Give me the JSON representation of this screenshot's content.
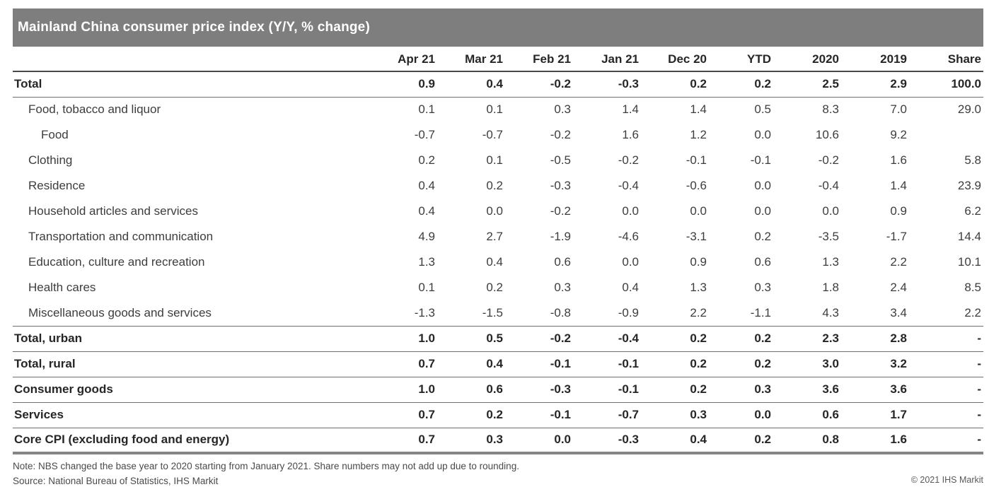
{
  "header": {
    "title": "Mainland China consumer price index (Y/Y, % change)"
  },
  "chart_data": {
    "type": "table",
    "title": "Mainland China consumer price index (Y/Y, % change)",
    "columns": [
      "Apr 21",
      "Mar 21",
      "Feb 21",
      "Jan 21",
      "Dec 20",
      "YTD",
      "2020",
      "2019",
      "Share"
    ],
    "rows": [
      {
        "label": "Total",
        "indent": 0,
        "emphasis": true,
        "divider_below": "thin",
        "values": [
          "0.9",
          "0.4",
          "-0.2",
          "-0.3",
          "0.2",
          "0.2",
          "2.5",
          "2.9",
          "100.0"
        ]
      },
      {
        "label": "Food, tobacco and liquor",
        "indent": 1,
        "emphasis": false,
        "divider_below": "none",
        "values": [
          "0.1",
          "0.1",
          "0.3",
          "1.4",
          "1.4",
          "0.5",
          "8.3",
          "7.0",
          "29.0"
        ]
      },
      {
        "label": "Food",
        "indent": 2,
        "emphasis": false,
        "divider_below": "none",
        "values": [
          "-0.7",
          "-0.7",
          "-0.2",
          "1.6",
          "1.2",
          "0.0",
          "10.6",
          "9.2",
          ""
        ]
      },
      {
        "label": "Clothing",
        "indent": 1,
        "emphasis": false,
        "divider_below": "none",
        "values": [
          "0.2",
          "0.1",
          "-0.5",
          "-0.2",
          "-0.1",
          "-0.1",
          "-0.2",
          "1.6",
          "5.8"
        ]
      },
      {
        "label": "Residence",
        "indent": 1,
        "emphasis": false,
        "divider_below": "none",
        "values": [
          "0.4",
          "0.2",
          "-0.3",
          "-0.4",
          "-0.6",
          "0.0",
          "-0.4",
          "1.4",
          "23.9"
        ]
      },
      {
        "label": "Household articles and services",
        "indent": 1,
        "emphasis": false,
        "divider_below": "none",
        "values": [
          "0.4",
          "0.0",
          "-0.2",
          "0.0",
          "0.0",
          "0.0",
          "0.0",
          "0.9",
          "6.2"
        ]
      },
      {
        "label": "Transportation and communication",
        "indent": 1,
        "emphasis": false,
        "divider_below": "none",
        "values": [
          "4.9",
          "2.7",
          "-1.9",
          "-4.6",
          "-3.1",
          "0.2",
          "-3.5",
          "-1.7",
          "14.4"
        ]
      },
      {
        "label": "Education, culture and recreation",
        "indent": 1,
        "emphasis": false,
        "divider_below": "none",
        "values": [
          "1.3",
          "0.4",
          "0.6",
          "0.0",
          "0.9",
          "0.6",
          "1.3",
          "2.2",
          "10.1"
        ]
      },
      {
        "label": "Health cares",
        "indent": 1,
        "emphasis": false,
        "divider_below": "none",
        "values": [
          "0.1",
          "0.2",
          "0.3",
          "0.4",
          "1.3",
          "0.3",
          "1.8",
          "2.4",
          "8.5"
        ]
      },
      {
        "label": "Miscellaneous goods and services",
        "indent": 1,
        "emphasis": false,
        "divider_below": "thin",
        "values": [
          "-1.3",
          "-1.5",
          "-0.8",
          "-0.9",
          "2.2",
          "-1.1",
          "4.3",
          "3.4",
          "2.2"
        ]
      },
      {
        "label": "Total, urban",
        "indent": 0,
        "emphasis": true,
        "divider_below": "thin",
        "values": [
          "1.0",
          "0.5",
          "-0.2",
          "-0.4",
          "0.2",
          "0.2",
          "2.3",
          "2.8",
          "-"
        ]
      },
      {
        "label": "Total, rural",
        "indent": 0,
        "emphasis": true,
        "divider_below": "thin",
        "values": [
          "0.7",
          "0.4",
          "-0.1",
          "-0.1",
          "0.2",
          "0.2",
          "3.0",
          "3.2",
          "-"
        ]
      },
      {
        "label": "Consumer goods",
        "indent": 0,
        "emphasis": true,
        "divider_below": "thin",
        "values": [
          "1.0",
          "0.6",
          "-0.3",
          "-0.1",
          "0.2",
          "0.3",
          "3.6",
          "3.6",
          "-"
        ]
      },
      {
        "label": "Services",
        "indent": 0,
        "emphasis": true,
        "divider_below": "thin",
        "values": [
          "0.7",
          "0.2",
          "-0.1",
          "-0.7",
          "0.3",
          "0.0",
          "0.6",
          "1.7",
          "-"
        ]
      },
      {
        "label": "Core CPI (excluding food and energy)",
        "indent": 0,
        "emphasis": true,
        "divider_below": "thick",
        "values": [
          "0.7",
          "0.3",
          "0.0",
          "-0.3",
          "0.4",
          "0.2",
          "0.8",
          "1.6",
          "-"
        ]
      }
    ]
  },
  "footer": {
    "note": "Note: NBS changed the base year to 2020 starting from January 2021. Share numbers may not add up due to rounding.",
    "source": "Source: National Bureau of Statistics, IHS Markit",
    "copyright": "© 2021 IHS Markit"
  },
  "colors": {
    "title_bar": "#7e7e7e",
    "title_text": "#ffffff",
    "header_rule": "#4a4a4a",
    "row_rule": "#6e6e6e",
    "bottom_bar": "#858585",
    "body_text": "#3d3d3d",
    "emphasis_text": "#262626",
    "footnote_text": "#4a4a4a"
  }
}
